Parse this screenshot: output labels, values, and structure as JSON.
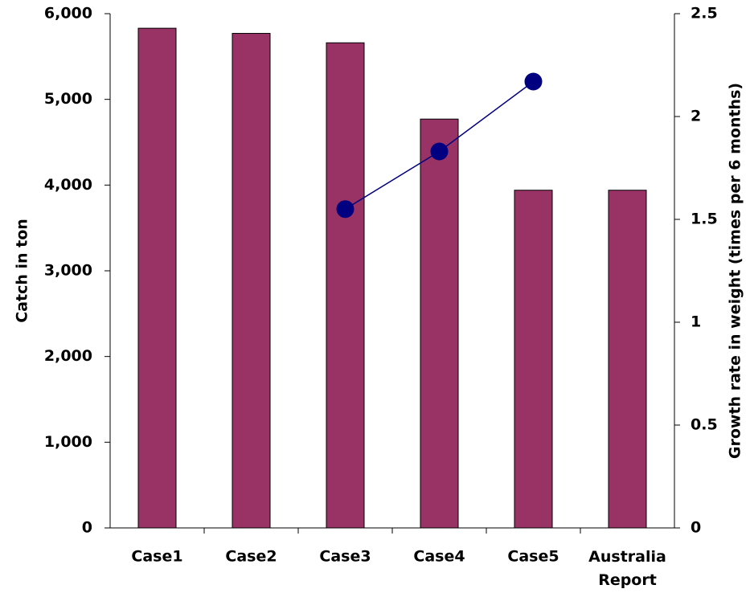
{
  "chart_data": {
    "type": "bar",
    "categories": [
      "Case1",
      "Case2",
      "Case3",
      "Case4",
      "Case5",
      "Australia\nReport"
    ],
    "series": [
      {
        "type": "bar",
        "color": "#993366",
        "values": [
          5830,
          5770,
          5660,
          4770,
          3940,
          3940
        ]
      },
      {
        "type": "line",
        "axis": "y2",
        "color": "#000080",
        "values": [
          null,
          null,
          1.55,
          1.83,
          2.17,
          null
        ]
      }
    ],
    "ylabel": "Catch in ton",
    "y2label": "Growth rate in weight (times per 6 months)",
    "ylim": [
      0,
      6000
    ],
    "yticks": [
      0,
      {
        "value": 1000,
        "label": "1,000"
      },
      {
        "value": 2000,
        "label": "2,000"
      },
      {
        "value": 3000,
        "label": "3,000"
      },
      {
        "value": 4000,
        "label": "4,000"
      },
      {
        "value": 5000,
        "label": "5,000"
      },
      {
        "value": 6000,
        "label": "6,000"
      }
    ],
    "y2lim": [
      0,
      2.5
    ],
    "y2ticks": [
      0,
      0.5,
      1,
      1.5,
      2,
      2.5
    ],
    "grid": false
  }
}
